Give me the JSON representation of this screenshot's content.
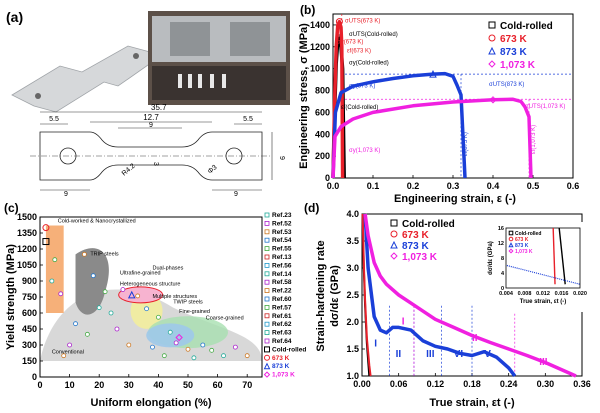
{
  "panel_labels": {
    "a": "(a)",
    "b": "(b)",
    "c": "(c)",
    "d": "(d)"
  },
  "colors": {
    "cold": "#000000",
    "k673": "#e8202a",
    "k873": "#1a3fd8",
    "k1073": "#f020e0",
    "orange": "#f4a261",
    "gray": "#8a8a8a",
    "ellipse_yellow": "#f5f09a",
    "ellipse_green": "#a8e0b0",
    "ellipse_blue": "#9ec9ea"
  },
  "specimen": {
    "dims": {
      "total": "35.7",
      "gauge": "12.7",
      "inner": "9",
      "edge_left": "5.5",
      "edge_right": "5.5",
      "height": "9",
      "grip": "9",
      "grip_right": "9",
      "radius": "R4.2",
      "hole": "Φ3",
      "thickness": "3"
    }
  },
  "chart_data": [
    {
      "id": "b",
      "type": "line",
      "xlabel": "Engineering strain, ε (-)",
      "ylabel": "Engineering stress, σ (MPa)",
      "xlim": [
        0,
        0.6
      ],
      "ylim": [
        0,
        1500
      ],
      "xticks": [
        "0.0",
        "0.1",
        "0.2",
        "0.3",
        "0.4",
        "0.5",
        "0.6"
      ],
      "yticks": [
        "0",
        "200",
        "400",
        "600",
        "800",
        "1000",
        "1200",
        "1400"
      ],
      "series": [
        {
          "name": "Cold-rolled",
          "marker": "square",
          "x": [
            0,
            0.004,
            0.008,
            0.012,
            0.016,
            0.02,
            0.024,
            0.028
          ],
          "y": [
            0,
            600,
            1050,
            1260,
            1280,
            1200,
            1000,
            0
          ]
        },
        {
          "name": "673 K",
          "marker": "circle",
          "x": [
            0,
            0.004,
            0.008,
            0.012,
            0.016,
            0.02,
            0.022,
            0.024
          ],
          "y": [
            0,
            700,
            1200,
            1400,
            1430,
            1380,
            1200,
            0
          ]
        },
        {
          "name": "873 K",
          "marker": "triangle",
          "x": [
            0,
            0.006,
            0.02,
            0.05,
            0.1,
            0.15,
            0.2,
            0.25,
            0.28,
            0.3,
            0.31,
            0.32,
            0.33
          ],
          "y": [
            0,
            600,
            780,
            840,
            880,
            910,
            935,
            950,
            955,
            930,
            850,
            760,
            0
          ]
        },
        {
          "name": "1,073 K",
          "marker": "diamond",
          "x": [
            0,
            0.005,
            0.02,
            0.05,
            0.1,
            0.2,
            0.3,
            0.4,
            0.45,
            0.47,
            0.48,
            0.49,
            0.495
          ],
          "y": [
            0,
            380,
            470,
            540,
            600,
            660,
            695,
            715,
            720,
            700,
            650,
            560,
            0
          ]
        }
      ],
      "annotations": [
        "σUTS(673 K)",
        "σy(673 K)",
        "εf(673 K)",
        "σUTS(Cold-rolled)",
        "σy(Cold-rolled)",
        "εf(Cold-rolled)",
        "σy(873 K)",
        "σUTS(873 K)",
        "εf(873 K)",
        "σy(1,073 K)",
        "σUTS(1,073 K)",
        "εf(1,073 K)"
      ]
    },
    {
      "id": "c",
      "type": "scatter",
      "xlabel": "Uniform elongation (%)",
      "ylabel": "Yield strength (MPa)",
      "xlim": [
        0,
        75
      ],
      "ylim": [
        0,
        1500
      ],
      "xticks": [
        "0",
        "10",
        "20",
        "30",
        "40",
        "50",
        "60",
        "70"
      ],
      "yticks": [
        "0",
        "150",
        "300",
        "450",
        "600",
        "750",
        "900",
        "1050",
        "1200",
        "1350",
        "1500"
      ],
      "regions": [
        "Cold-worked & Nanocrystallized",
        "TRIP steels",
        "Ultrafine-grained",
        "Heterogeneous structure",
        "Dual-phases",
        "Multiple structures",
        "TWIP steels",
        "Fine-grained",
        "Coarse-grained",
        "Conventional"
      ],
      "legend": [
        "Ref.23",
        "Ref.52",
        "Ref.53",
        "Ref.54",
        "Ref.55",
        "Ref.13",
        "Ref.56",
        "Ref.14",
        "Ref.58",
        "Ref.22",
        "Ref.60",
        "Ref.57",
        "Ref.61",
        "Ref.62",
        "Ref.63",
        "Ref.64",
        "Cold-rolled",
        "673 K",
        "873 K",
        "1,073 K"
      ],
      "points": [
        {
          "s": "Cold-rolled",
          "x": 2,
          "y": 1270
        },
        {
          "s": "673 K",
          "x": 2,
          "y": 1400
        },
        {
          "s": "873 K",
          "x": 31,
          "y": 770
        },
        {
          "s": "1,073 K",
          "x": 47,
          "y": 370
        },
        {
          "s": "Ref",
          "x": 5,
          "y": 1100
        },
        {
          "s": "Ref",
          "x": 4,
          "y": 900
        },
        {
          "s": "Ref",
          "x": 7,
          "y": 780
        },
        {
          "s": "Ref",
          "x": 15,
          "y": 1150
        },
        {
          "s": "Ref",
          "x": 18,
          "y": 950
        },
        {
          "s": "Ref",
          "x": 22,
          "y": 800
        },
        {
          "s": "Ref",
          "x": 24,
          "y": 600
        },
        {
          "s": "Ref",
          "x": 28,
          "y": 820
        },
        {
          "s": "Ref",
          "x": 33,
          "y": 760
        },
        {
          "s": "Ref",
          "x": 36,
          "y": 640
        },
        {
          "s": "Ref",
          "x": 40,
          "y": 560
        },
        {
          "s": "Ref",
          "x": 44,
          "y": 420
        },
        {
          "s": "Ref",
          "x": 46,
          "y": 320
        },
        {
          "s": "Ref",
          "x": 50,
          "y": 260
        },
        {
          "s": "Ref",
          "x": 55,
          "y": 300
        },
        {
          "s": "Ref",
          "x": 58,
          "y": 250
        },
        {
          "s": "Ref",
          "x": 62,
          "y": 200
        },
        {
          "s": "Ref",
          "x": 66,
          "y": 280
        },
        {
          "s": "Ref",
          "x": 70,
          "y": 200
        },
        {
          "s": "Ref",
          "x": 12,
          "y": 500
        },
        {
          "s": "Ref",
          "x": 16,
          "y": 400
        },
        {
          "s": "Ref",
          "x": 20,
          "y": 650
        },
        {
          "s": "Ref",
          "x": 26,
          "y": 450
        },
        {
          "s": "Ref",
          "x": 30,
          "y": 300
        },
        {
          "s": "Ref",
          "x": 38,
          "y": 280
        },
        {
          "s": "Ref",
          "x": 42,
          "y": 200
        },
        {
          "s": "Ref",
          "x": 52,
          "y": 180
        },
        {
          "s": "Ref",
          "x": 10,
          "y": 300
        },
        {
          "s": "Ref",
          "x": 8,
          "y": 200
        }
      ]
    },
    {
      "id": "d",
      "type": "line",
      "xlabel": "True strain, εt (-)",
      "ylabel": "Strain-hardening rate dσ/dε (GPa)",
      "xlim": [
        0,
        0.36
      ],
      "ylim": [
        1,
        4
      ],
      "xticks": [
        "0.00",
        "0.06",
        "0.12",
        "0.18",
        "0.24",
        "0.30",
        "0.36"
      ],
      "yticks": [
        "1.0",
        "1.5",
        "2.0",
        "2.5",
        "3.0",
        "3.5",
        "4.0"
      ],
      "stages": [
        "I",
        "II",
        "III",
        "VI",
        "V",
        "I",
        "II",
        "III"
      ],
      "series": [
        {
          "name": "Cold-rolled",
          "x": [
            0.001,
            0.003,
            0.005,
            0.008,
            0.012
          ],
          "y": [
            4.0,
            3.0,
            2.3,
            1.6,
            1.0
          ]
        },
        {
          "name": "673 K",
          "x": [
            0.001,
            0.003,
            0.005,
            0.008,
            0.012,
            0.014
          ],
          "y": [
            4.0,
            3.1,
            2.4,
            1.7,
            1.2,
            1.0
          ]
        },
        {
          "name": "873 K",
          "x": [
            0.005,
            0.01,
            0.02,
            0.03,
            0.04,
            0.05,
            0.06,
            0.08,
            0.1,
            0.12,
            0.14,
            0.16,
            0.18,
            0.2,
            0.22,
            0.24,
            0.25
          ],
          "y": [
            4.0,
            3.0,
            2.1,
            1.85,
            1.8,
            1.9,
            1.9,
            1.85,
            1.65,
            1.55,
            1.5,
            1.42,
            1.38,
            1.45,
            1.35,
            1.15,
            1.0
          ]
        },
        {
          "name": "1,073 K",
          "x": [
            0.005,
            0.01,
            0.02,
            0.03,
            0.04,
            0.06,
            0.08,
            0.1,
            0.12,
            0.15,
            0.18,
            0.21,
            0.24,
            0.27,
            0.3,
            0.33,
            0.35
          ],
          "y": [
            4.0,
            3.6,
            3.1,
            2.85,
            2.7,
            2.5,
            2.35,
            2.2,
            2.05,
            1.9,
            1.75,
            1.62,
            1.5,
            1.38,
            1.25,
            1.1,
            1.0
          ]
        }
      ],
      "inset": {
        "xlabel": "True strain, εt (-)",
        "ylabel": "dσ/dε (GPa)",
        "xticks": [
          "0.004",
          "0.008",
          "0.012",
          "0.016",
          "0.020"
        ],
        "yticks": [
          "0",
          "4",
          "8",
          "12",
          "16"
        ],
        "xlim": [
          0.004,
          0.02
        ],
        "ylim": [
          0,
          16
        ]
      }
    }
  ]
}
